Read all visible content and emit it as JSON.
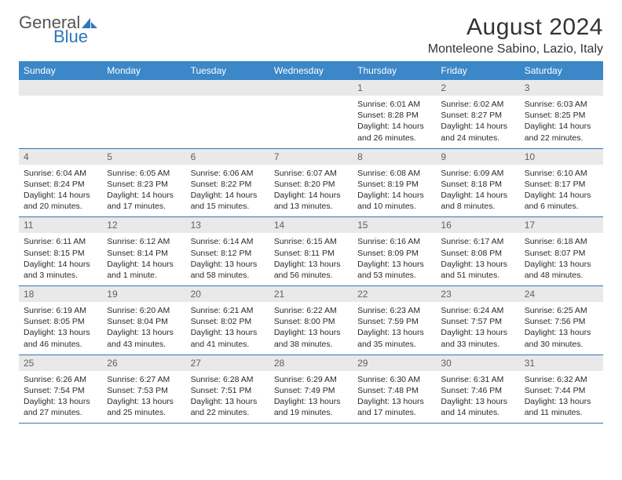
{
  "brand": {
    "name1": "General",
    "name2": "Blue"
  },
  "header": {
    "title": "August 2024",
    "location": "Monteleone Sabino, Lazio, Italy"
  },
  "colors": {
    "header_bg": "#3b87c8",
    "header_text": "#ffffff",
    "daynum_bg": "#e9e9e9",
    "daynum_text": "#606060",
    "rule": "#2d76ba",
    "text": "#2a2a2a",
    "brand_accent": "#2d76ba"
  },
  "typography": {
    "title_fontsize": 30,
    "location_fontsize": 16,
    "header_fontsize": 12,
    "daynum_fontsize": 12,
    "body_fontsize": 10.5
  },
  "layout": {
    "columns": 7,
    "weeks": 5
  },
  "columns": [
    "Sunday",
    "Monday",
    "Tuesday",
    "Wednesday",
    "Thursday",
    "Friday",
    "Saturday"
  ],
  "weeks": [
    {
      "nums": [
        "",
        "",
        "",
        "",
        "1",
        "2",
        "3"
      ],
      "cells": [
        {},
        {},
        {},
        {},
        {
          "sunrise": "Sunrise: 6:01 AM",
          "sunset": "Sunset: 8:28 PM",
          "day1": "Daylight: 14 hours",
          "day2": "and 26 minutes."
        },
        {
          "sunrise": "Sunrise: 6:02 AM",
          "sunset": "Sunset: 8:27 PM",
          "day1": "Daylight: 14 hours",
          "day2": "and 24 minutes."
        },
        {
          "sunrise": "Sunrise: 6:03 AM",
          "sunset": "Sunset: 8:25 PM",
          "day1": "Daylight: 14 hours",
          "day2": "and 22 minutes."
        }
      ]
    },
    {
      "nums": [
        "4",
        "5",
        "6",
        "7",
        "8",
        "9",
        "10"
      ],
      "cells": [
        {
          "sunrise": "Sunrise: 6:04 AM",
          "sunset": "Sunset: 8:24 PM",
          "day1": "Daylight: 14 hours",
          "day2": "and 20 minutes."
        },
        {
          "sunrise": "Sunrise: 6:05 AM",
          "sunset": "Sunset: 8:23 PM",
          "day1": "Daylight: 14 hours",
          "day2": "and 17 minutes."
        },
        {
          "sunrise": "Sunrise: 6:06 AM",
          "sunset": "Sunset: 8:22 PM",
          "day1": "Daylight: 14 hours",
          "day2": "and 15 minutes."
        },
        {
          "sunrise": "Sunrise: 6:07 AM",
          "sunset": "Sunset: 8:20 PM",
          "day1": "Daylight: 14 hours",
          "day2": "and 13 minutes."
        },
        {
          "sunrise": "Sunrise: 6:08 AM",
          "sunset": "Sunset: 8:19 PM",
          "day1": "Daylight: 14 hours",
          "day2": "and 10 minutes."
        },
        {
          "sunrise": "Sunrise: 6:09 AM",
          "sunset": "Sunset: 8:18 PM",
          "day1": "Daylight: 14 hours",
          "day2": "and 8 minutes."
        },
        {
          "sunrise": "Sunrise: 6:10 AM",
          "sunset": "Sunset: 8:17 PM",
          "day1": "Daylight: 14 hours",
          "day2": "and 6 minutes."
        }
      ]
    },
    {
      "nums": [
        "11",
        "12",
        "13",
        "14",
        "15",
        "16",
        "17"
      ],
      "cells": [
        {
          "sunrise": "Sunrise: 6:11 AM",
          "sunset": "Sunset: 8:15 PM",
          "day1": "Daylight: 14 hours",
          "day2": "and 3 minutes."
        },
        {
          "sunrise": "Sunrise: 6:12 AM",
          "sunset": "Sunset: 8:14 PM",
          "day1": "Daylight: 14 hours",
          "day2": "and 1 minute."
        },
        {
          "sunrise": "Sunrise: 6:14 AM",
          "sunset": "Sunset: 8:12 PM",
          "day1": "Daylight: 13 hours",
          "day2": "and 58 minutes."
        },
        {
          "sunrise": "Sunrise: 6:15 AM",
          "sunset": "Sunset: 8:11 PM",
          "day1": "Daylight: 13 hours",
          "day2": "and 56 minutes."
        },
        {
          "sunrise": "Sunrise: 6:16 AM",
          "sunset": "Sunset: 8:09 PM",
          "day1": "Daylight: 13 hours",
          "day2": "and 53 minutes."
        },
        {
          "sunrise": "Sunrise: 6:17 AM",
          "sunset": "Sunset: 8:08 PM",
          "day1": "Daylight: 13 hours",
          "day2": "and 51 minutes."
        },
        {
          "sunrise": "Sunrise: 6:18 AM",
          "sunset": "Sunset: 8:07 PM",
          "day1": "Daylight: 13 hours",
          "day2": "and 48 minutes."
        }
      ]
    },
    {
      "nums": [
        "18",
        "19",
        "20",
        "21",
        "22",
        "23",
        "24"
      ],
      "cells": [
        {
          "sunrise": "Sunrise: 6:19 AM",
          "sunset": "Sunset: 8:05 PM",
          "day1": "Daylight: 13 hours",
          "day2": "and 46 minutes."
        },
        {
          "sunrise": "Sunrise: 6:20 AM",
          "sunset": "Sunset: 8:04 PM",
          "day1": "Daylight: 13 hours",
          "day2": "and 43 minutes."
        },
        {
          "sunrise": "Sunrise: 6:21 AM",
          "sunset": "Sunset: 8:02 PM",
          "day1": "Daylight: 13 hours",
          "day2": "and 41 minutes."
        },
        {
          "sunrise": "Sunrise: 6:22 AM",
          "sunset": "Sunset: 8:00 PM",
          "day1": "Daylight: 13 hours",
          "day2": "and 38 minutes."
        },
        {
          "sunrise": "Sunrise: 6:23 AM",
          "sunset": "Sunset: 7:59 PM",
          "day1": "Daylight: 13 hours",
          "day2": "and 35 minutes."
        },
        {
          "sunrise": "Sunrise: 6:24 AM",
          "sunset": "Sunset: 7:57 PM",
          "day1": "Daylight: 13 hours",
          "day2": "and 33 minutes."
        },
        {
          "sunrise": "Sunrise: 6:25 AM",
          "sunset": "Sunset: 7:56 PM",
          "day1": "Daylight: 13 hours",
          "day2": "and 30 minutes."
        }
      ]
    },
    {
      "nums": [
        "25",
        "26",
        "27",
        "28",
        "29",
        "30",
        "31"
      ],
      "cells": [
        {
          "sunrise": "Sunrise: 6:26 AM",
          "sunset": "Sunset: 7:54 PM",
          "day1": "Daylight: 13 hours",
          "day2": "and 27 minutes."
        },
        {
          "sunrise": "Sunrise: 6:27 AM",
          "sunset": "Sunset: 7:53 PM",
          "day1": "Daylight: 13 hours",
          "day2": "and 25 minutes."
        },
        {
          "sunrise": "Sunrise: 6:28 AM",
          "sunset": "Sunset: 7:51 PM",
          "day1": "Daylight: 13 hours",
          "day2": "and 22 minutes."
        },
        {
          "sunrise": "Sunrise: 6:29 AM",
          "sunset": "Sunset: 7:49 PM",
          "day1": "Daylight: 13 hours",
          "day2": "and 19 minutes."
        },
        {
          "sunrise": "Sunrise: 6:30 AM",
          "sunset": "Sunset: 7:48 PM",
          "day1": "Daylight: 13 hours",
          "day2": "and 17 minutes."
        },
        {
          "sunrise": "Sunrise: 6:31 AM",
          "sunset": "Sunset: 7:46 PM",
          "day1": "Daylight: 13 hours",
          "day2": "and 14 minutes."
        },
        {
          "sunrise": "Sunrise: 6:32 AM",
          "sunset": "Sunset: 7:44 PM",
          "day1": "Daylight: 13 hours",
          "day2": "and 11 minutes."
        }
      ]
    }
  ]
}
